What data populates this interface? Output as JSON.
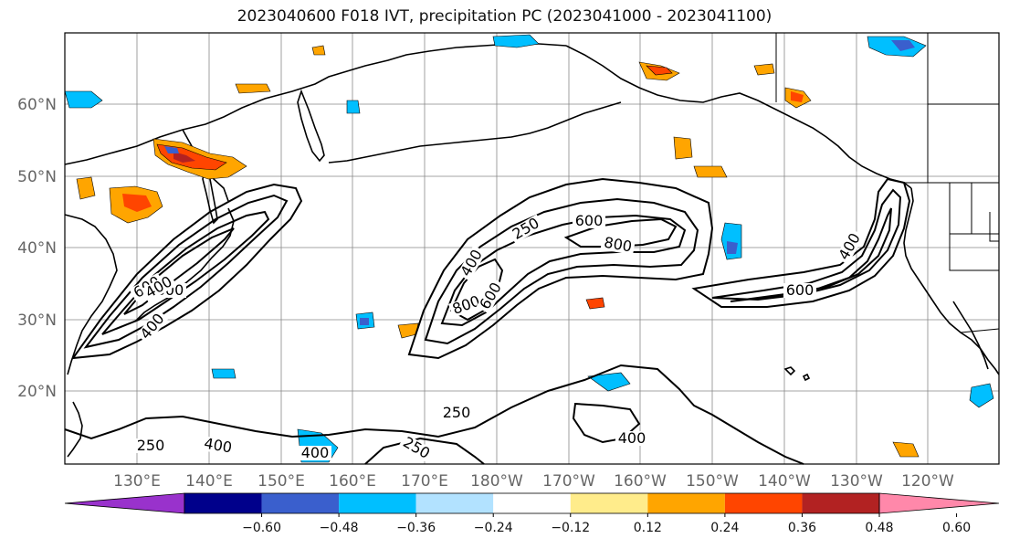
{
  "title": "2023040600 F018 IVT, precipitation PC (2023041000 - 2023041100)",
  "lat_ticks": [
    "60°N",
    "50°N",
    "40°N",
    "30°N",
    "20°N"
  ],
  "lon_ticks": [
    "130°E",
    "140°E",
    "150°E",
    "160°E",
    "170°E",
    "180°W",
    "170°W",
    "160°W",
    "150°W",
    "140°W",
    "130°W",
    "120°W"
  ],
  "contour_labels": [
    "250",
    "600",
    "800",
    "400",
    "800",
    "600",
    "400",
    "600",
    "400",
    "800",
    "600",
    "400",
    "250",
    "400",
    "250",
    "400",
    "250",
    "400",
    "400"
  ],
  "colorbar": {
    "colors": [
      "#9932cc",
      "#00008b",
      "#3a5fcd",
      "#00bfff",
      "#b2e2ff",
      "#ffffff",
      "#ffec8b",
      "#ffa500",
      "#ff4500",
      "#b22222",
      "#ff88aa"
    ],
    "labels": [
      "−0.60",
      "−0.48",
      "−0.36",
      "−0.24",
      "−0.12",
      "0.12",
      "0.24",
      "0.36",
      "0.48",
      "0.60"
    ]
  },
  "style": {
    "contour_color": "#000000",
    "coast_color": "#000000",
    "grid_color": "#888888"
  }
}
